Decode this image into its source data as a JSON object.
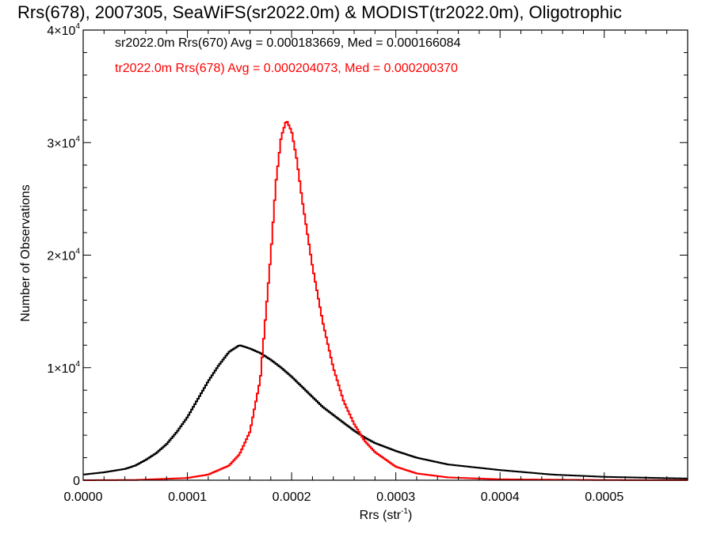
{
  "chart_data": {
    "type": "histogram",
    "title": "Rrs(678), 2007305, SeaWiFS(sr2022.0m) & MODIST(tr2022.0m), Oligotrophic",
    "xlabel": "Rrs (str",
    "xlabel_sup": "-1",
    "xlabel_suffix": ")",
    "ylabel": "Number of Observations",
    "xlim": [
      0.0,
      0.00058
    ],
    "ylim": [
      0,
      40000
    ],
    "x_ticks": [
      0.0,
      0.0001,
      0.0002,
      0.0003,
      0.0004,
      0.0005
    ],
    "x_tick_labels": [
      "0.0000",
      "0.0001",
      "0.0002",
      "0.0003",
      "0.0004",
      "0.0005"
    ],
    "y_ticks": [
      0,
      10000,
      20000,
      30000,
      40000
    ],
    "y_tick_labels": [
      {
        "mant": "0",
        "exp": ""
      },
      {
        "mant": "1×10",
        "exp": "4"
      },
      {
        "mant": "2×10",
        "exp": "4"
      },
      {
        "mant": "3×10",
        "exp": "4"
      },
      {
        "mant": "4×10",
        "exp": "4"
      }
    ],
    "grid": false,
    "annotations": [
      "sr2022.0m Rrs(670) Avg = 0.000183669, Med = 0.000166084",
      "tr2022.0m Rrs(678) Avg = 0.000204073, Med = 0.000200370"
    ],
    "series": [
      {
        "name": "sr2022.0m",
        "color": "#000000",
        "x": [
          0,
          2e-05,
          4e-05,
          5e-05,
          6e-05,
          7e-05,
          8e-05,
          9e-05,
          0.0001,
          0.00011,
          0.00012,
          0.00013,
          0.00014,
          0.00015,
          0.00016,
          0.00017,
          0.00018,
          0.00019,
          0.0002,
          0.00021,
          0.00022,
          0.00023,
          0.00024,
          0.00025,
          0.00026,
          0.00027,
          0.00028,
          0.0003,
          0.00032,
          0.00035,
          0.0004,
          0.00045,
          0.0005,
          0.00055,
          0.00058
        ],
        "values": [
          500,
          700,
          1000,
          1300,
          1800,
          2400,
          3200,
          4300,
          5600,
          7200,
          8800,
          10200,
          11400,
          12000,
          11700,
          11300,
          10700,
          10000,
          9200,
          8300,
          7400,
          6500,
          5800,
          5100,
          4400,
          3800,
          3300,
          2600,
          2000,
          1400,
          900,
          500,
          300,
          200,
          150
        ]
      },
      {
        "name": "tr2022.0m",
        "color": "#ff0000",
        "x": [
          0,
          5e-05,
          0.0001,
          0.00012,
          0.00014,
          0.00015,
          0.00016,
          0.00017,
          0.00018,
          0.000185,
          0.00019,
          0.000195,
          0.0002,
          0.000205,
          0.00021,
          0.00022,
          0.00023,
          0.00024,
          0.00025,
          0.00026,
          0.00027,
          0.00028,
          0.0003,
          0.00032,
          0.00035,
          0.0004,
          0.0005,
          0.00058
        ],
        "values": [
          0,
          20,
          200,
          500,
          1300,
          2300,
          4300,
          9000,
          20000,
          26500,
          30500,
          32000,
          31000,
          28500,
          25000,
          19000,
          14000,
          10000,
          7000,
          5000,
          3500,
          2500,
          1200,
          600,
          250,
          80,
          15,
          5
        ]
      }
    ]
  }
}
